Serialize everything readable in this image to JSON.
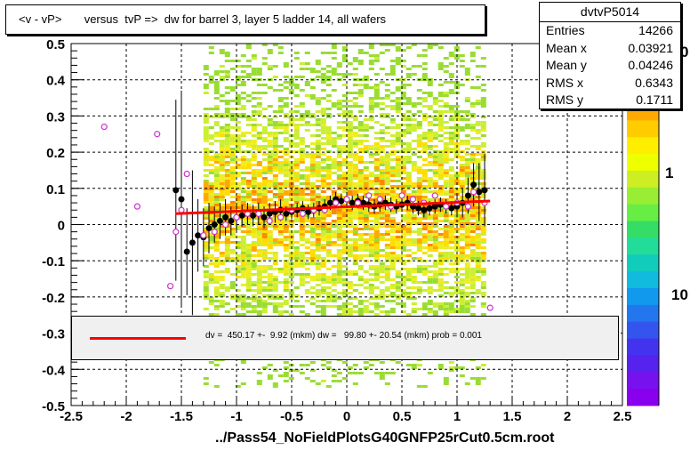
{
  "title_bar": {
    "text": "<v - vP>       versus  tvP =>  dw for barrel 3, layer 5 ladder 14, all wafers"
  },
  "stats": {
    "name": "dvtvP5014",
    "rows": [
      {
        "key": "Entries",
        "value": "14266"
      },
      {
        "key": "Mean x",
        "value": "0.03921"
      },
      {
        "key": "Mean y",
        "value": "0.04246"
      },
      {
        "key": "RMS x",
        "value": "0.6343"
      },
      {
        "key": "RMS y",
        "value": "0.1711"
      }
    ]
  },
  "fit": {
    "text": "dv =  450.17 +-  9.92 (mkm) dw =   99.80 +- 20.54 (mkm) prob = 0.001"
  },
  "footer": {
    "text": "../Pass54_NoFieldPlotsG40GNFP25rCut0.5cm.root"
  },
  "colorbar": {
    "labels": [
      "1",
      "10"
    ],
    "clipped_label": "0"
  },
  "chart_data": {
    "type": "scatter",
    "xlim": [
      -2.5,
      2.5
    ],
    "ylim": [
      -0.5,
      0.5
    ],
    "x_ticks": [
      "-2.5",
      "-2",
      "-1.5",
      "-1",
      "-0.5",
      "0",
      "0.5",
      "1",
      "1.5",
      "2",
      "2.5"
    ],
    "y_ticks": [
      "-0.5",
      "-0.4",
      "-0.3",
      "-0.2",
      "-0.1",
      "0",
      "0.1",
      "0.2",
      "0.3",
      "0.4",
      "0.5"
    ],
    "grid": true,
    "heatmap_region": {
      "x": [
        -1.3,
        1.25
      ],
      "y": [
        -0.45,
        0.5
      ]
    },
    "black_profile": {
      "x": [
        -1.55,
        -1.5,
        -1.45,
        -1.4,
        -1.35,
        -1.3,
        -1.25,
        -1.2,
        -1.15,
        -1.1,
        -1.05,
        -1.0,
        -0.95,
        -0.9,
        -0.85,
        -0.8,
        -0.75,
        -0.7,
        -0.65,
        -0.6,
        -0.55,
        -0.5,
        -0.45,
        -0.4,
        -0.35,
        -0.3,
        -0.25,
        -0.2,
        -0.15,
        -0.1,
        -0.05,
        0.0,
        0.05,
        0.1,
        0.15,
        0.2,
        0.25,
        0.3,
        0.35,
        0.4,
        0.45,
        0.5,
        0.55,
        0.6,
        0.65,
        0.7,
        0.75,
        0.8,
        0.85,
        0.9,
        0.95,
        1.0,
        1.05,
        1.1,
        1.15,
        1.2,
        1.25
      ],
      "y": [
        0.095,
        0.07,
        -0.075,
        -0.05,
        -0.03,
        -0.035,
        -0.01,
        0.0,
        0.01,
        0.02,
        0.01,
        0.02,
        0.025,
        0.03,
        0.025,
        0.03,
        0.02,
        0.03,
        0.035,
        0.04,
        0.03,
        0.035,
        0.04,
        0.045,
        0.035,
        0.04,
        0.045,
        0.05,
        0.06,
        0.07,
        0.065,
        0.07,
        0.06,
        0.065,
        0.06,
        0.055,
        0.05,
        0.055,
        0.06,
        0.055,
        0.05,
        0.055,
        0.06,
        0.05,
        0.045,
        0.04,
        0.045,
        0.05,
        0.055,
        0.05,
        0.045,
        0.05,
        0.06,
        0.08,
        0.11,
        0.09,
        0.095
      ],
      "err": [
        0.25,
        0.3,
        0.12,
        0.2,
        0.1,
        0.08,
        0.07,
        0.05,
        0.05,
        0.05,
        0.04,
        0.04,
        0.03,
        0.03,
        0.03,
        0.03,
        0.03,
        0.03,
        0.03,
        0.03,
        0.02,
        0.02,
        0.02,
        0.02,
        0.02,
        0.02,
        0.02,
        0.02,
        0.02,
        0.02,
        0.02,
        0.02,
        0.02,
        0.02,
        0.02,
        0.02,
        0.02,
        0.02,
        0.02,
        0.02,
        0.02,
        0.02,
        0.02,
        0.02,
        0.02,
        0.02,
        0.02,
        0.02,
        0.02,
        0.02,
        0.02,
        0.03,
        0.04,
        0.05,
        0.06,
        0.08,
        0.1
      ]
    },
    "open_profile": {
      "x": [
        -2.2,
        -1.9,
        -1.72,
        -1.6,
        -1.55,
        -1.5,
        -1.45,
        -1.3,
        -1.2,
        -1.1,
        -1.0,
        -0.9,
        -0.8,
        -0.7,
        -0.6,
        -0.5,
        -0.4,
        -0.3,
        -0.2,
        -0.1,
        0.0,
        0.1,
        0.2,
        0.3,
        0.4,
        0.5,
        0.6,
        0.7,
        0.8,
        0.9,
        1.0,
        1.1,
        1.15,
        1.25,
        1.3
      ],
      "y": [
        0.27,
        0.05,
        0.25,
        -0.17,
        -0.02,
        0.04,
        0.14,
        -0.03,
        -0.02,
        0.0,
        0.02,
        0.03,
        0.03,
        0.01,
        0.02,
        0.04,
        0.03,
        0.04,
        0.04,
        0.06,
        0.07,
        0.06,
        0.08,
        0.07,
        0.05,
        0.08,
        0.07,
        0.06,
        0.08,
        0.05,
        0.06,
        0.05,
        0.09,
        0.06,
        -0.23
      ]
    },
    "fit_line": {
      "x": [
        -1.55,
        1.3
      ],
      "y": [
        0.03,
        0.065
      ]
    }
  }
}
